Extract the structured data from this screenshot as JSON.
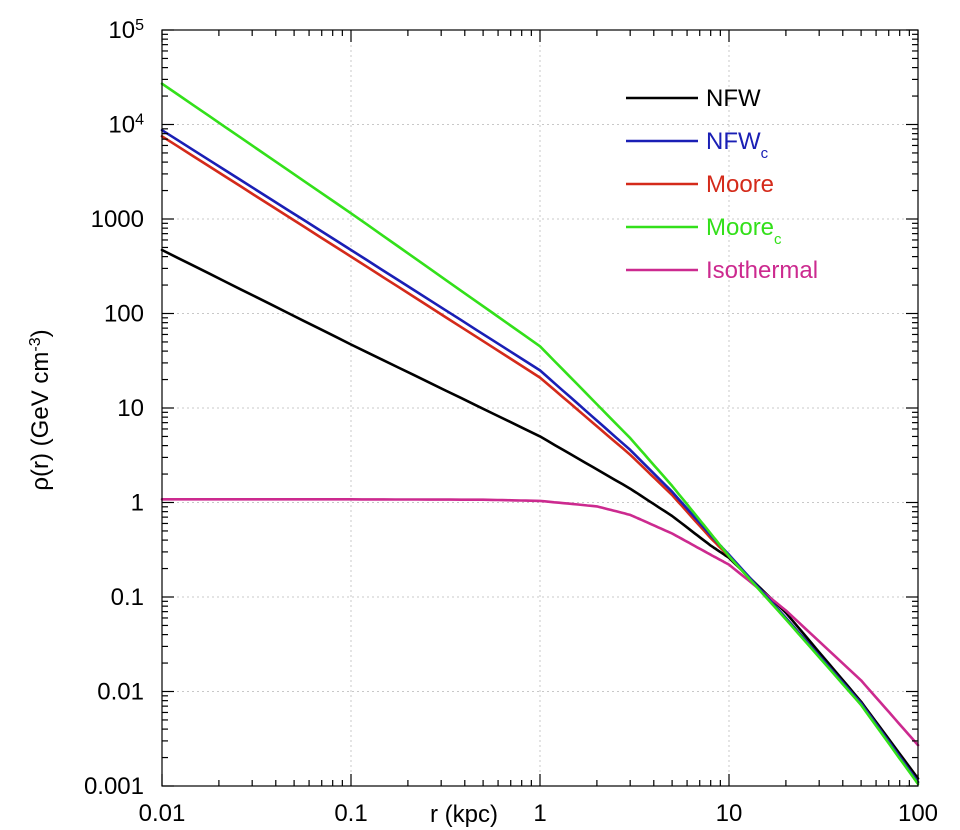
{
  "chart_data": {
    "type": "line",
    "x_scale": "log",
    "y_scale": "log",
    "xlim": [
      0.01,
      100
    ],
    "ylim": [
      0.001,
      100000
    ],
    "xlabel": "r (kpc)",
    "ylabel": {
      "main": "ρ(r) (GeV cm",
      "sup": "-3",
      "close": ")"
    },
    "x_ticks": [
      {
        "value": 0.01,
        "label": "0.01"
      },
      {
        "value": 0.1,
        "label": "0.1"
      },
      {
        "value": 1,
        "label": "1"
      },
      {
        "value": 10,
        "label": "10"
      },
      {
        "value": 100,
        "label": "100"
      }
    ],
    "y_ticks": [
      {
        "value": 0.001,
        "label": "0.001"
      },
      {
        "value": 0.01,
        "label": "0.01"
      },
      {
        "value": 0.1,
        "label": "0.1"
      },
      {
        "value": 1,
        "label": "1"
      },
      {
        "value": 10,
        "label": "10"
      },
      {
        "value": 100,
        "label": "100"
      },
      {
        "value": 1000,
        "label": "1000"
      },
      {
        "value": 10000,
        "label": "10",
        "sup": "4"
      },
      {
        "value": 100000,
        "label": "10",
        "sup": "5"
      }
    ],
    "legend_position": "top-right",
    "series": [
      {
        "name": "NFW",
        "subscript": "",
        "color": "#000000",
        "points": [
          [
            0.01,
            470
          ],
          [
            0.1,
            47
          ],
          [
            1,
            5.0
          ],
          [
            3,
            1.4
          ],
          [
            5,
            0.72
          ],
          [
            8,
            0.35
          ],
          [
            10,
            0.26
          ],
          [
            20,
            0.068
          ],
          [
            50,
            0.0078
          ],
          [
            100,
            0.0012
          ]
        ]
      },
      {
        "name": "NFW",
        "subscript": "c",
        "color": "#1a1fb5",
        "points": [
          [
            0.01,
            8700
          ],
          [
            0.1,
            470
          ],
          [
            1,
            25
          ],
          [
            3,
            3.6
          ],
          [
            5,
            1.3
          ],
          [
            8,
            0.45
          ],
          [
            10,
            0.28
          ],
          [
            20,
            0.06
          ],
          [
            50,
            0.0075
          ],
          [
            100,
            0.0011
          ]
        ]
      },
      {
        "name": "Moore",
        "subscript": "",
        "color": "#d42a1a",
        "points": [
          [
            0.01,
            7500
          ],
          [
            0.1,
            400
          ],
          [
            1,
            21
          ],
          [
            3,
            3.2
          ],
          [
            5,
            1.2
          ],
          [
            8,
            0.42
          ],
          [
            10,
            0.27
          ],
          [
            20,
            0.06
          ],
          [
            50,
            0.0075
          ],
          [
            100,
            0.0011
          ]
        ]
      },
      {
        "name": "Moore",
        "subscript": "c",
        "color": "#33e01a",
        "points": [
          [
            0.01,
            27000
          ],
          [
            0.1,
            1150
          ],
          [
            1,
            45
          ],
          [
            3,
            4.8
          ],
          [
            5,
            1.5
          ],
          [
            8,
            0.47
          ],
          [
            10,
            0.27
          ],
          [
            20,
            0.058
          ],
          [
            50,
            0.0072
          ],
          [
            100,
            0.00105
          ]
        ]
      },
      {
        "name": "Isothermal",
        "subscript": "",
        "color": "#cc2a8f",
        "points": [
          [
            0.01,
            1.08
          ],
          [
            0.1,
            1.08
          ],
          [
            0.5,
            1.07
          ],
          [
            1,
            1.04
          ],
          [
            2,
            0.91
          ],
          [
            3,
            0.74
          ],
          [
            5,
            0.47
          ],
          [
            8,
            0.28
          ],
          [
            10,
            0.22
          ],
          [
            20,
            0.072
          ],
          [
            50,
            0.0131
          ],
          [
            100,
            0.0027
          ]
        ]
      }
    ]
  }
}
